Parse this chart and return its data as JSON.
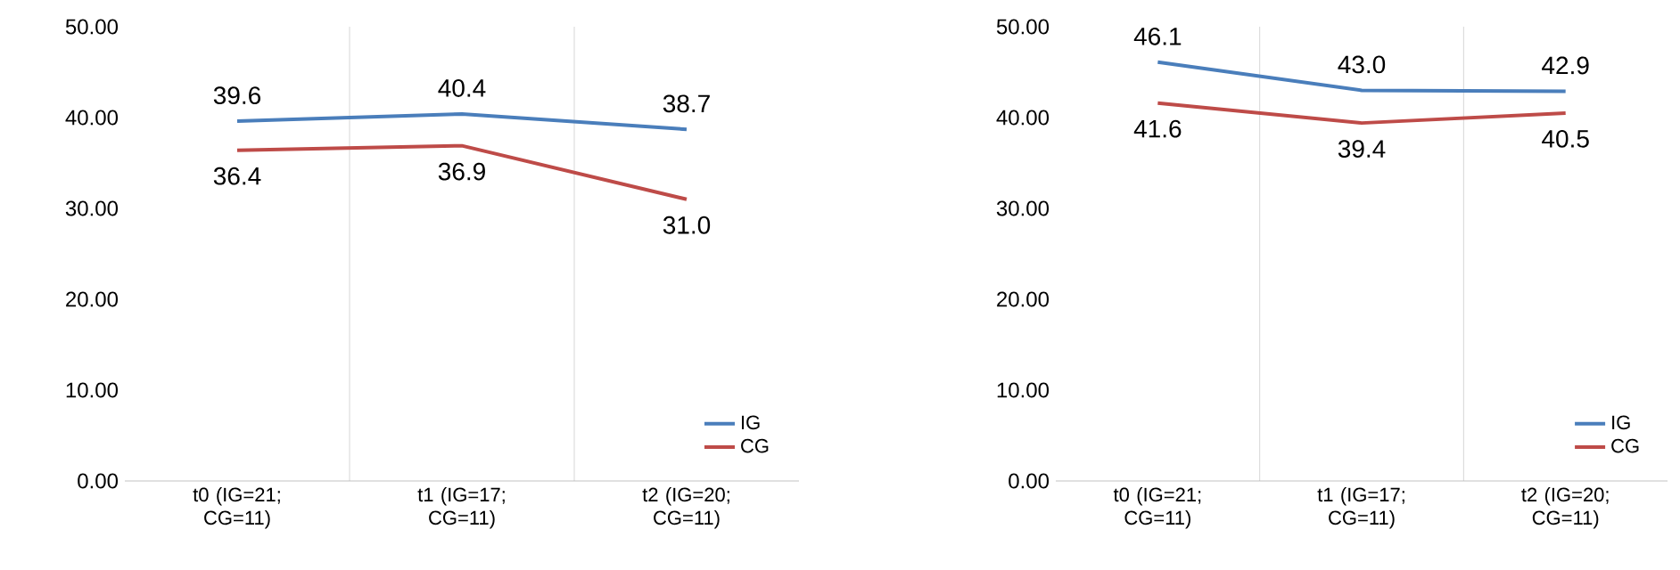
{
  "chart_data": [
    {
      "type": "line",
      "categories": [
        "t0 (IG=21; CG=11)",
        "t1 (IG=17; CG=11)",
        "t2 (IG=20; CG=11)"
      ],
      "series": [
        {
          "name": "IG",
          "color": "#4a7ebb",
          "values": [
            39.6,
            40.4,
            38.7
          ],
          "value_labels": [
            "39.6",
            "40.4",
            "38.7"
          ]
        },
        {
          "name": "CG",
          "color": "#be4b48",
          "values": [
            36.4,
            36.9,
            31.0
          ],
          "value_labels": [
            "36.4",
            "36.9",
            "31.0"
          ]
        }
      ],
      "ylim": [
        0,
        50
      ],
      "yticks": [
        {
          "value": 0,
          "label": "0.00"
        },
        {
          "value": 10,
          "label": "10.00"
        },
        {
          "value": 20,
          "label": "20.00"
        },
        {
          "value": 30,
          "label": "30.00"
        },
        {
          "value": 40,
          "label": "40.00"
        },
        {
          "value": 50,
          "label": "50.00"
        }
      ],
      "grid": "x",
      "legend": "bottom right",
      "marker": "none",
      "line_style": "solid"
    },
    {
      "type": "line",
      "categories": [
        "t0 (IG=21; CG=11)",
        "t1 (IG=17; CG=11)",
        "t2 (IG=20; CG=11)"
      ],
      "series": [
        {
          "name": "IG",
          "color": "#4a7ebb",
          "values": [
            46.1,
            43.0,
            42.9
          ],
          "value_labels": [
            "46.1",
            "43.0",
            "42.9"
          ]
        },
        {
          "name": "CG",
          "color": "#be4b48",
          "values": [
            41.6,
            39.4,
            40.5
          ],
          "value_labels": [
            "41.6",
            "39.4",
            "40.5"
          ]
        }
      ],
      "ylim": [
        0,
        50
      ],
      "yticks": [
        {
          "value": 0,
          "label": "0.00"
        },
        {
          "value": 10,
          "label": "10.00"
        },
        {
          "value": 20,
          "label": "20.00"
        },
        {
          "value": 30,
          "label": "30.00"
        },
        {
          "value": 40,
          "label": "40.00"
        },
        {
          "value": 50,
          "label": "50.00"
        }
      ],
      "grid": "x",
      "legend": "bottom right",
      "marker": "none",
      "line_style": "solid"
    }
  ]
}
